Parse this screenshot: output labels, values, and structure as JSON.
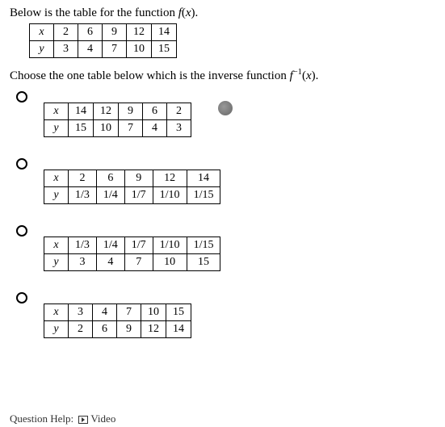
{
  "intro_prefix": "Below is the table for the function ",
  "intro_fn": "f(x)",
  "intro_suffix": ".",
  "given": {
    "row1_label": "x",
    "row2_label": "y",
    "r1": [
      "2",
      "6",
      "9",
      "12",
      "14"
    ],
    "r2": [
      "3",
      "4",
      "7",
      "10",
      "15"
    ]
  },
  "choose_prefix": "Choose the one table below which is the inverse function ",
  "choose_fn_base": "f",
  "choose_fn_sup": "−1",
  "choose_fn_arg": "(x)",
  "choose_suffix": ".",
  "options": [
    {
      "row1_label": "x",
      "row2_label": "y",
      "r1": [
        "14",
        "12",
        "9",
        "6",
        "2"
      ],
      "r2": [
        "15",
        "10",
        "7",
        "4",
        "3"
      ],
      "wide": false
    },
    {
      "row1_label": "x",
      "row2_label": "y",
      "r1": [
        "2",
        "6",
        "9",
        "12",
        "14"
      ],
      "r2": [
        "1/3",
        "1/4",
        "1/7",
        "1/10",
        "1/15"
      ],
      "wide": true
    },
    {
      "row1_label": "x",
      "row2_label": "y",
      "r1": [
        "1/3",
        "1/4",
        "1/7",
        "1/10",
        "1/15"
      ],
      "r2": [
        "3",
        "4",
        "7",
        "10",
        "15"
      ],
      "wide": true
    },
    {
      "row1_label": "x",
      "row2_label": "y",
      "r1": [
        "3",
        "4",
        "7",
        "10",
        "15"
      ],
      "r2": [
        "2",
        "6",
        "9",
        "12",
        "14"
      ],
      "wide": false
    }
  ],
  "help_label": "Question Help:",
  "video_label": "Video",
  "colors": {
    "fg": "#000000",
    "bg": "#ffffff",
    "border": "#000000"
  }
}
